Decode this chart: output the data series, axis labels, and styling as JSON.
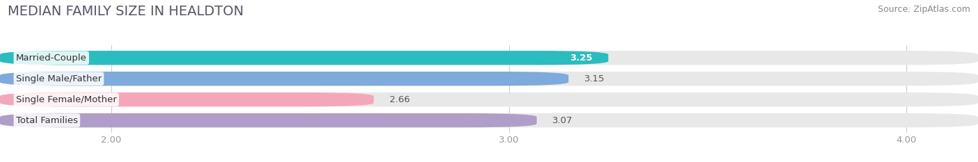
{
  "title": "MEDIAN FAMILY SIZE IN HEALDTON",
  "source": "Source: ZipAtlas.com",
  "categories": [
    "Married-Couple",
    "Single Male/Father",
    "Single Female/Mother",
    "Total Families"
  ],
  "values": [
    3.25,
    3.15,
    2.66,
    3.07
  ],
  "bar_colors": [
    "#2bbcbf",
    "#7eaadc",
    "#f4a7bb",
    "#b09ec8"
  ],
  "label_colors": [
    "white",
    "black",
    "black",
    "black"
  ],
  "value_inside": [
    true,
    false,
    false,
    false
  ],
  "xlim_min": 1.72,
  "xlim_max": 4.18,
  "xstart": 1.72,
  "xticks": [
    2.0,
    3.0,
    4.0
  ],
  "xtick_labels": [
    "2.00",
    "3.00",
    "4.00"
  ],
  "background_color": "#ffffff",
  "bar_bg_color": "#e8e8e8",
  "title_fontsize": 14,
  "label_fontsize": 9.5,
  "value_fontsize": 9.5,
  "source_fontsize": 9,
  "bar_height": 0.68,
  "bar_gap": 1.0,
  "rounding": 0.18
}
